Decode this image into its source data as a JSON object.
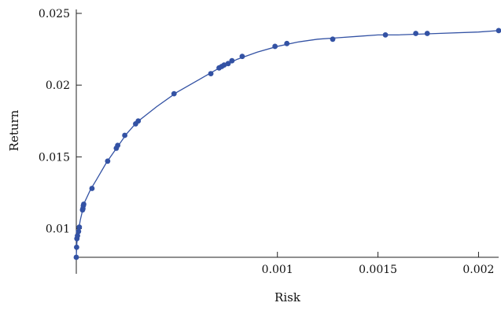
{
  "chart_data": {
    "type": "scatter",
    "title": "",
    "xlabel": "Risk",
    "ylabel": "Return",
    "xlim": [
      0,
      0.0021
    ],
    "ylim": [
      0.008,
      0.025
    ],
    "x_ticks": [
      {
        "value": 0.001,
        "label": "0.001"
      },
      {
        "value": 0.0015,
        "label": "0.0015"
      },
      {
        "value": 0.002,
        "label": "0.002"
      }
    ],
    "y_ticks": [
      {
        "value": 0.01,
        "label": "0.01"
      },
      {
        "value": 0.015,
        "label": "0.015"
      },
      {
        "value": 0.02,
        "label": "0.02"
      },
      {
        "value": 0.025,
        "label": "0.025"
      }
    ],
    "grid": false,
    "legend": "none",
    "colors": {
      "series": "#3352a4",
      "axis": "#222222"
    },
    "series": [
      {
        "points": [
          {
            "x": 0.0,
            "y": 0.008
          },
          {
            "x": 1.6e-06,
            "y": 0.0087
          },
          {
            "x": 3e-06,
            "y": 0.0093
          },
          {
            "x": 6e-06,
            "y": 0.0095
          },
          {
            "x": 1.1e-05,
            "y": 0.0098
          },
          {
            "x": 1.5e-05,
            "y": 0.0101
          },
          {
            "x": 3.1e-05,
            "y": 0.0113
          },
          {
            "x": 3.3e-05,
            "y": 0.0114
          },
          {
            "x": 3.5e-05,
            "y": 0.0116
          },
          {
            "x": 3.7e-05,
            "y": 0.0117
          },
          {
            "x": 7.8e-05,
            "y": 0.0128
          },
          {
            "x": 0.000156,
            "y": 0.0147
          },
          {
            "x": 0.000199,
            "y": 0.0156
          },
          {
            "x": 0.000206,
            "y": 0.0158
          },
          {
            "x": 0.000241,
            "y": 0.0165
          },
          {
            "x": 0.000295,
            "y": 0.0173
          },
          {
            "x": 0.000308,
            "y": 0.0175
          },
          {
            "x": 0.000486,
            "y": 0.0194
          },
          {
            "x": 0.000669,
            "y": 0.0208
          },
          {
            "x": 0.00071,
            "y": 0.0212
          },
          {
            "x": 0.000723,
            "y": 0.0213
          },
          {
            "x": 0.000735,
            "y": 0.0214
          },
          {
            "x": 0.000755,
            "y": 0.0215
          },
          {
            "x": 0.000774,
            "y": 0.0217
          },
          {
            "x": 0.000825,
            "y": 0.022
          },
          {
            "x": 0.000988,
            "y": 0.0227
          },
          {
            "x": 0.001047,
            "y": 0.0229
          },
          {
            "x": 0.001275,
            "y": 0.0232
          },
          {
            "x": 0.001537,
            "y": 0.0235
          },
          {
            "x": 0.001688,
            "y": 0.0236
          },
          {
            "x": 0.001745,
            "y": 0.0236
          },
          {
            "x": 0.0021,
            "y": 0.0238
          }
        ]
      }
    ],
    "curve": [
      {
        "x": 0.0,
        "y": 0.008
      },
      {
        "x": 2e-06,
        "y": 0.0088
      },
      {
        "x": 5e-06,
        "y": 0.0094
      },
      {
        "x": 1e-05,
        "y": 0.0098
      },
      {
        "x": 2e-05,
        "y": 0.0106
      },
      {
        "x": 4e-05,
        "y": 0.0118
      },
      {
        "x": 7e-05,
        "y": 0.0127
      },
      {
        "x": 0.0001,
        "y": 0.0134
      },
      {
        "x": 0.00015,
        "y": 0.0146
      },
      {
        "x": 0.0002,
        "y": 0.0156
      },
      {
        "x": 0.00025,
        "y": 0.0166
      },
      {
        "x": 0.0003,
        "y": 0.0174
      },
      {
        "x": 0.0004,
        "y": 0.0185
      },
      {
        "x": 0.0005,
        "y": 0.0195
      },
      {
        "x": 0.0006,
        "y": 0.0203
      },
      {
        "x": 0.0007,
        "y": 0.0211
      },
      {
        "x": 0.0008,
        "y": 0.0218
      },
      {
        "x": 0.0009,
        "y": 0.0223
      },
      {
        "x": 0.001,
        "y": 0.0227
      },
      {
        "x": 0.0011,
        "y": 0.023
      },
      {
        "x": 0.0012,
        "y": 0.0232
      },
      {
        "x": 0.0013,
        "y": 0.0233
      },
      {
        "x": 0.0014,
        "y": 0.0234
      },
      {
        "x": 0.0015,
        "y": 0.0235
      },
      {
        "x": 0.0016,
        "y": 0.0235
      },
      {
        "x": 0.0018,
        "y": 0.0236
      },
      {
        "x": 0.002,
        "y": 0.0237
      },
      {
        "x": 0.0021,
        "y": 0.0238
      }
    ]
  }
}
